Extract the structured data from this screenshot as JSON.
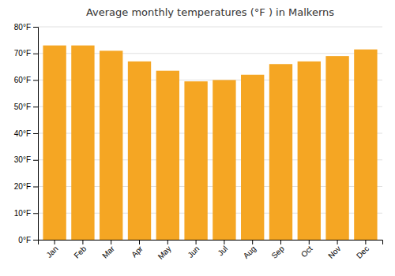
{
  "chart_data": {
    "type": "bar",
    "title": "Average monthly temperatures (°F ) in Malkerns",
    "categories": [
      "Jan",
      "Feb",
      "Mar",
      "Apr",
      "May",
      "Jun",
      "Jul",
      "Aug",
      "Sep",
      "Oct",
      "Nov",
      "Dec"
    ],
    "values": [
      73,
      73,
      71,
      67,
      63.5,
      59.5,
      60,
      62,
      66,
      67,
      69,
      71.5
    ],
    "color": "#F5A623",
    "ylim": [
      0,
      80
    ],
    "yticks": [
      {
        "value": 0,
        "label": "0°F"
      },
      {
        "value": 10,
        "label": "10°F"
      },
      {
        "value": 20,
        "label": "20°F"
      },
      {
        "value": 30,
        "label": "30°F"
      },
      {
        "value": 40,
        "label": "40°F"
      },
      {
        "value": 50,
        "label": "50°F"
      },
      {
        "value": 60,
        "label": "60°F"
      },
      {
        "value": 70,
        "label": "70°F"
      },
      {
        "value": 80,
        "label": "80°F"
      }
    ],
    "grid": true
  }
}
